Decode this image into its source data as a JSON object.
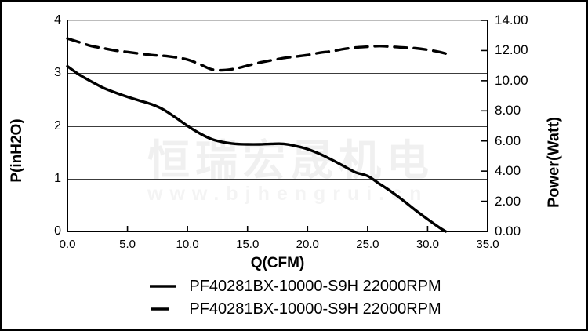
{
  "watermark": {
    "line1": "恒瑞宏晟机电",
    "line2": "www.bjhengrui.cn"
  },
  "colors": {
    "curve": "#000000",
    "grid": "#3c3c3c",
    "spine": "#000000",
    "top_border": "#7a7a7a",
    "watermark_cn": "#f0f0f0",
    "watermark_url": "#f4f4f4",
    "background": "#ffffff"
  },
  "chart_data": {
    "type": "line",
    "title": "",
    "xlabel": "Q(CFM)",
    "ylabel_left": "P(inH2O)",
    "ylabel_right": "Power(Watt)",
    "x_range": [
      0,
      35
    ],
    "y_left_range": [
      0,
      4
    ],
    "y_right_range": [
      0,
      14
    ],
    "x_ticks": [
      "0.0",
      "5.0",
      "10.0",
      "15.0",
      "20.0",
      "25.0",
      "30.0",
      "35.0"
    ],
    "y_left_ticks": [
      "0",
      "1",
      "2",
      "3",
      "4"
    ],
    "y_right_ticks": [
      "0.00",
      "2.00",
      "4.00",
      "6.00",
      "8.00",
      "10.00",
      "12.00",
      "14.00"
    ],
    "gridlines_y_left": [
      1,
      2,
      3
    ],
    "grid": true,
    "legend_position": "bottom",
    "series": [
      {
        "name": "PF40281BX-10000-S9H 22000RPM",
        "style": "solid",
        "axis": "left",
        "unit": "inH2O",
        "points": [
          [
            0,
            3.13
          ],
          [
            1,
            2.97
          ],
          [
            2,
            2.84
          ],
          [
            3,
            2.72
          ],
          [
            4,
            2.63
          ],
          [
            5,
            2.55
          ],
          [
            6,
            2.48
          ],
          [
            7,
            2.41
          ],
          [
            8,
            2.31
          ],
          [
            9,
            2.16
          ],
          [
            10,
            2.0
          ],
          [
            11,
            1.86
          ],
          [
            12,
            1.75
          ],
          [
            13,
            1.69
          ],
          [
            14,
            1.66
          ],
          [
            15,
            1.65
          ],
          [
            16,
            1.65
          ],
          [
            17,
            1.66
          ],
          [
            18,
            1.66
          ],
          [
            19,
            1.62
          ],
          [
            20,
            1.56
          ],
          [
            21,
            1.47
          ],
          [
            22,
            1.36
          ],
          [
            23,
            1.24
          ],
          [
            24,
            1.12
          ],
          [
            25,
            1.05
          ],
          [
            26,
            0.9
          ],
          [
            27,
            0.75
          ],
          [
            28,
            0.58
          ],
          [
            29,
            0.4
          ],
          [
            30,
            0.23
          ],
          [
            31,
            0.07
          ],
          [
            31.5,
            0
          ]
        ]
      },
      {
        "name": "PF40281BX-10000-S9H 22000RPM",
        "style": "dashed",
        "axis": "right",
        "unit": "Watt",
        "points": [
          [
            0,
            12.8
          ],
          [
            1,
            12.55
          ],
          [
            2,
            12.3
          ],
          [
            3,
            12.15
          ],
          [
            4,
            12.0
          ],
          [
            5,
            11.9
          ],
          [
            6,
            11.8
          ],
          [
            7,
            11.7
          ],
          [
            8,
            11.65
          ],
          [
            9,
            11.55
          ],
          [
            10,
            11.4
          ],
          [
            11,
            11.1
          ],
          [
            12,
            10.75
          ],
          [
            13,
            10.7
          ],
          [
            14,
            10.8
          ],
          [
            15,
            11.0
          ],
          [
            16,
            11.2
          ],
          [
            17,
            11.35
          ],
          [
            18,
            11.5
          ],
          [
            19,
            11.6
          ],
          [
            20,
            11.7
          ],
          [
            21,
            11.85
          ],
          [
            22,
            11.95
          ],
          [
            23,
            12.1
          ],
          [
            24,
            12.2
          ],
          [
            25,
            12.25
          ],
          [
            26,
            12.3
          ],
          [
            27,
            12.25
          ],
          [
            28,
            12.2
          ],
          [
            29,
            12.15
          ],
          [
            30,
            12.05
          ],
          [
            31,
            11.9
          ],
          [
            31.5,
            11.8
          ]
        ]
      }
    ]
  }
}
